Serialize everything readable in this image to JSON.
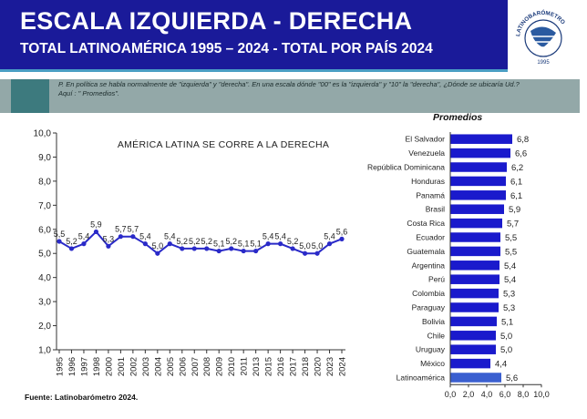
{
  "header": {
    "title": "ESCALA IZQUIERDA - DERECHA",
    "subtitle": "TOTAL LATINOAMÉRICA 1995  – 2024 - TOTAL POR PAÍS 2024",
    "logo_text": "LATINOBARÓMETRO",
    "logo_years": "1995",
    "colors": {
      "banner": "#1a1a99",
      "stripe": "#4a9ec4",
      "question_band": "#93a8a8"
    }
  },
  "question": "P. En política se habla normalmente de \"izquierda\" y \"derecha\". En una escala dónde \"00\" es la \"izquierda\" y \"10\" la \"derecha\", ¿Dónde se ubicaría Ud.? Aquí : \" Promedios\".",
  "source": "Fuente: Latinobarómetro 2024.",
  "chart_data": [
    {
      "type": "line",
      "title": "AMÉRICA LATINA SE CORRE A LA DERECHA",
      "x": [
        "1995",
        "1996",
        "1997",
        "1998",
        "2000",
        "2001",
        "2002",
        "2003",
        "2004",
        "2005",
        "2006",
        "2007",
        "2008",
        "2009",
        "2010",
        "2011",
        "2013",
        "2015",
        "2016",
        "2017",
        "2018",
        "2020",
        "2023",
        "2024"
      ],
      "series": [
        {
          "values": [
            5.5,
            5.2,
            5.4,
            5.9,
            5.3,
            5.7,
            5.7,
            5.4,
            5.0,
            5.4,
            5.2,
            5.2,
            5.2,
            5.1,
            5.2,
            5.1,
            5.1,
            5.4,
            5.4,
            5.2,
            5.0,
            5.0,
            5.4,
            5.6
          ],
          "labels": [
            "5,5",
            "5,2",
            "5,4",
            "5,9",
            "5,3",
            "5,7",
            "5,7",
            "5,4",
            "5,0",
            "5,4",
            "5,2",
            "5,2",
            "5,2",
            "5,1",
            "5,2",
            "5,1",
            "5,1",
            "5,4",
            "5,4",
            "5,2",
            "5,0",
            "5,0",
            "5,4",
            "5,6"
          ],
          "color": "#2a2ac8"
        }
      ],
      "ylim": [
        1,
        10
      ],
      "yticks": [
        "1,0",
        "2,0",
        "3,0",
        "4,0",
        "5,0",
        "6,0",
        "7,0",
        "8,0",
        "9,0",
        "10,0"
      ],
      "grid": false
    },
    {
      "type": "bar",
      "orientation": "horizontal",
      "title": "Promedios",
      "categories": [
        "El Salvador",
        "Venezuela",
        "República Dominicana",
        "Honduras",
        "Panamá",
        "Brasil",
        "Costa Rica",
        "Ecuador",
        "Guatemala",
        "Argentina",
        "Perú",
        "Colombia",
        "Paraguay",
        "Bolivia",
        "Chile",
        "Uruguay",
        "México",
        "Latinoamérica"
      ],
      "values": [
        6.8,
        6.6,
        6.2,
        6.1,
        6.1,
        5.9,
        5.7,
        5.5,
        5.5,
        5.4,
        5.4,
        5.3,
        5.3,
        5.1,
        5.0,
        5.0,
        4.4,
        5.6
      ],
      "labels": [
        "6,8",
        "6,6",
        "6,2",
        "6,1",
        "6,1",
        "5,9",
        "5,7",
        "5,5",
        "5,5",
        "5,4",
        "5,4",
        "5,3",
        "5,3",
        "5,1",
        "5,0",
        "5,0",
        "4,4",
        "5,6"
      ],
      "xlim": [
        0,
        10
      ],
      "xticks": [
        "0,0",
        "2,0",
        "4,0",
        "6,0",
        "8,0",
        "10,0"
      ],
      "bar_color": "#1a1acc",
      "highlight_color": "#3a5fd0",
      "grid": false
    }
  ]
}
